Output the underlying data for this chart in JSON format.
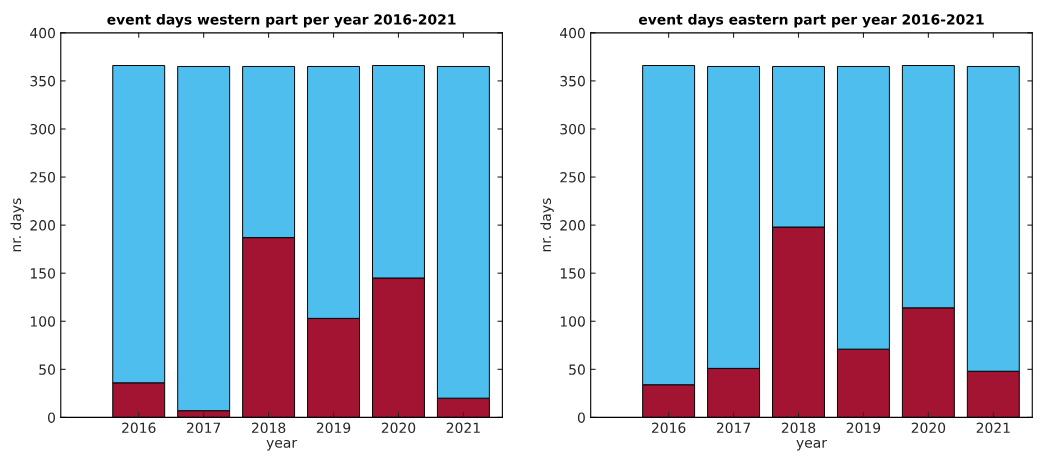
{
  "chart_data": [
    {
      "type": "bar",
      "title": "event days western part per year 2016-2021",
      "xlabel": "year",
      "ylabel": "nr. days",
      "stacked": true,
      "x": [
        2016,
        2017,
        2018,
        2019,
        2020,
        2021
      ],
      "xlim": [
        2014.8,
        2021.6
      ],
      "xticks": [
        2016,
        2017,
        2018,
        2019,
        2020,
        2021
      ],
      "ylim": [
        0,
        400
      ],
      "yticks": [
        0,
        50,
        100,
        150,
        200,
        250,
        300,
        350,
        400
      ],
      "grid": false,
      "legend": false,
      "series": [
        {
          "color": "#a21431",
          "values": [
            36,
            7,
            187,
            103,
            145,
            20
          ]
        },
        {
          "color": "#4dbeee",
          "values": [
            330,
            358,
            178,
            262,
            221,
            345
          ]
        }
      ]
    },
    {
      "type": "bar",
      "title": "event days eastern part per year 2016-2021",
      "xlabel": "year",
      "ylabel": "nr. days",
      "stacked": true,
      "x": [
        2016,
        2017,
        2018,
        2019,
        2020,
        2021
      ],
      "xlim": [
        2014.8,
        2021.6
      ],
      "xticks": [
        2016,
        2017,
        2018,
        2019,
        2020,
        2021
      ],
      "ylim": [
        0,
        400
      ],
      "yticks": [
        0,
        50,
        100,
        150,
        200,
        250,
        300,
        350,
        400
      ],
      "grid": false,
      "legend": false,
      "series": [
        {
          "color": "#a21431",
          "values": [
            34,
            51,
            198,
            71,
            114,
            48
          ]
        },
        {
          "color": "#4dbeee",
          "values": [
            332,
            314,
            167,
            294,
            252,
            317
          ]
        }
      ]
    }
  ]
}
